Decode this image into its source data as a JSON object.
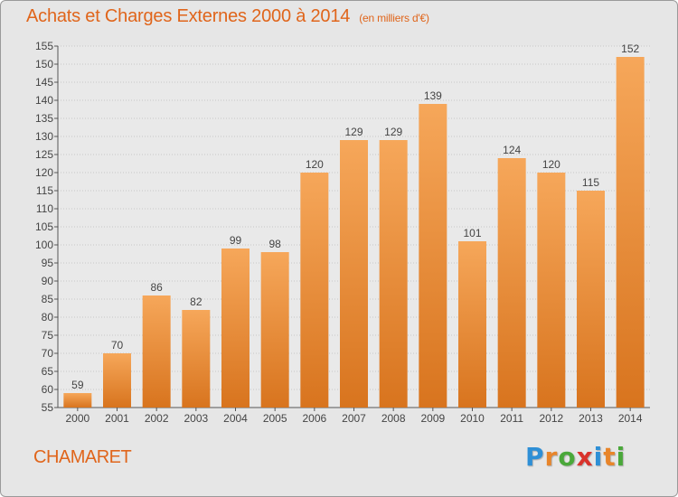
{
  "title": "Achats et Charges Externes 2000 à 2014",
  "subtitle": "(en milliers d'€)",
  "commune": "CHAMARET",
  "logo": {
    "letters": [
      "P",
      "r",
      "o",
      "x",
      "i",
      "t",
      "i"
    ],
    "colors": [
      "#2e8fd6",
      "#e8852a",
      "#4aa83a",
      "#d9322b",
      "#2e8fd6",
      "#e8852a",
      "#4aa83a"
    ]
  },
  "colors": {
    "bar_light": "#f6a75a",
    "bar_dark": "#d8741e",
    "accent": "#e0651b"
  },
  "chart_data": {
    "type": "bar",
    "categories": [
      "2000",
      "2001",
      "2002",
      "2003",
      "2004",
      "2005",
      "2006",
      "2007",
      "2008",
      "2009",
      "2010",
      "2011",
      "2012",
      "2013",
      "2014"
    ],
    "values": [
      59,
      70,
      86,
      82,
      99,
      98,
      120,
      129,
      129,
      139,
      101,
      124,
      120,
      115,
      152
    ],
    "ylim": [
      55,
      155
    ],
    "yticks": [
      55,
      60,
      65,
      70,
      75,
      80,
      85,
      90,
      95,
      100,
      105,
      110,
      115,
      120,
      125,
      130,
      135,
      140,
      145,
      150,
      155
    ],
    "grid": true,
    "data_labels": true
  }
}
